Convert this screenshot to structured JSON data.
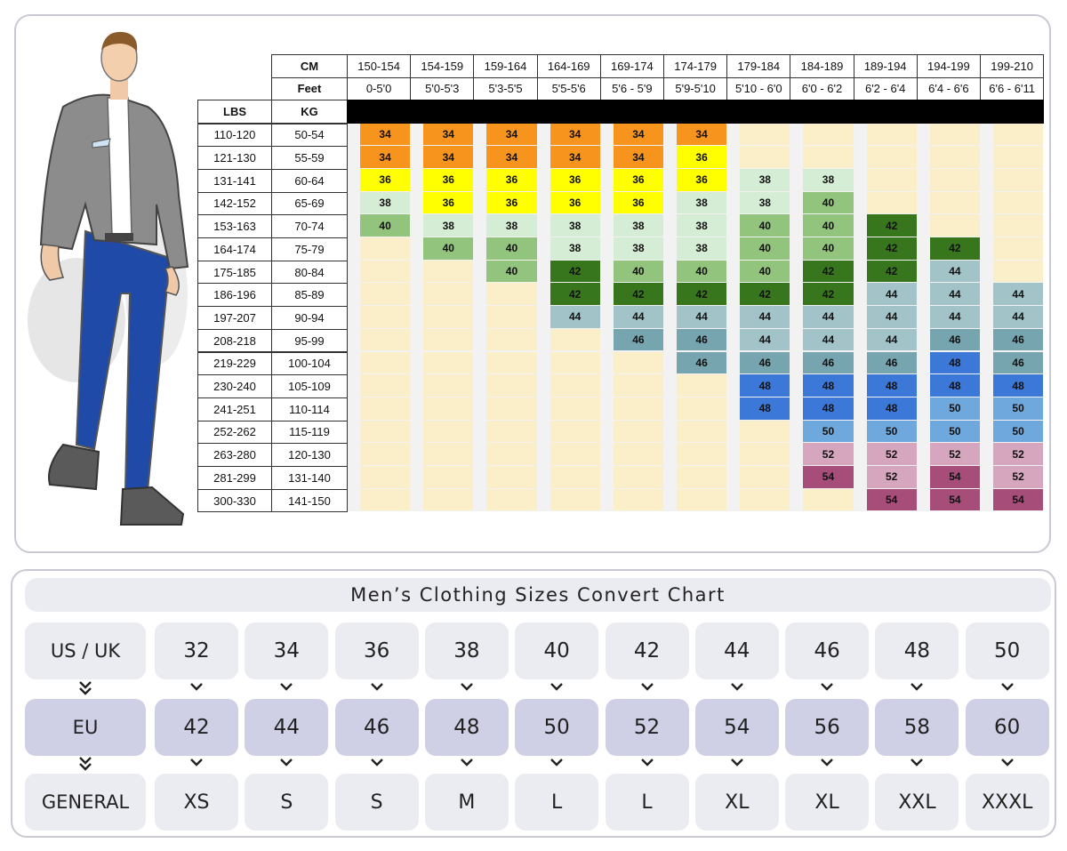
{
  "chart_data": {
    "type": "table",
    "title": "",
    "header_rows": [
      {
        "label": "CM",
        "values": [
          "150-154",
          "154-159",
          "159-164",
          "164-169",
          "169-174",
          "174-179",
          "179-184",
          "184-189",
          "189-194",
          "194-199",
          "199-210"
        ]
      },
      {
        "label": "Feet",
        "values": [
          "0-5'0",
          "5'0-5'3",
          "5'3-5'5",
          "5'5-5'6",
          "5'6 - 5'9",
          "5'9-5'10",
          "5'10 - 6'0",
          "6'0 - 6'2",
          "6'2 - 6'4",
          "6'4 - 6'6",
          "6'6 - 6'11"
        ]
      }
    ],
    "row_headers": [
      "LBS",
      "KG"
    ],
    "rows": [
      {
        "lbs": "110-120",
        "kg": "50-54",
        "sizes": [
          34,
          34,
          34,
          34,
          34,
          34,
          null,
          null,
          null,
          null,
          null
        ]
      },
      {
        "lbs": "121-130",
        "kg": "55-59",
        "sizes": [
          34,
          34,
          34,
          34,
          34,
          36,
          null,
          null,
          null,
          null,
          null
        ]
      },
      {
        "lbs": "131-141",
        "kg": "60-64",
        "sizes": [
          36,
          36,
          36,
          36,
          36,
          36,
          38,
          38,
          null,
          null,
          null
        ]
      },
      {
        "lbs": "142-152",
        "kg": "65-69",
        "sizes": [
          38,
          36,
          36,
          36,
          36,
          38,
          38,
          40,
          null,
          null,
          null
        ]
      },
      {
        "lbs": "153-163",
        "kg": "70-74",
        "sizes": [
          40,
          38,
          38,
          38,
          38,
          38,
          40,
          40,
          42,
          null,
          null
        ]
      },
      {
        "lbs": "164-174",
        "kg": "75-79",
        "sizes": [
          null,
          40,
          40,
          38,
          38,
          38,
          40,
          40,
          42,
          42,
          null
        ]
      },
      {
        "lbs": "175-185",
        "kg": "80-84",
        "sizes": [
          null,
          null,
          40,
          42,
          40,
          40,
          40,
          42,
          42,
          44,
          null
        ]
      },
      {
        "lbs": "186-196",
        "kg": "85-89",
        "sizes": [
          null,
          null,
          null,
          42,
          42,
          42,
          42,
          42,
          44,
          44,
          44
        ]
      },
      {
        "lbs": "197-207",
        "kg": "90-94",
        "sizes": [
          null,
          null,
          null,
          44,
          44,
          44,
          44,
          44,
          44,
          44,
          44
        ]
      },
      {
        "lbs": "208-218",
        "kg": "95-99",
        "sizes": [
          null,
          null,
          null,
          null,
          46,
          46,
          44,
          44,
          44,
          46,
          46
        ]
      },
      {
        "lbs": "219-229",
        "kg": "100-104",
        "sizes": [
          null,
          null,
          null,
          null,
          null,
          46,
          46,
          46,
          46,
          48,
          46
        ]
      },
      {
        "lbs": "230-240",
        "kg": "105-109",
        "sizes": [
          null,
          null,
          null,
          null,
          null,
          null,
          48,
          48,
          48,
          48,
          48
        ]
      },
      {
        "lbs": "241-251",
        "kg": "110-114",
        "sizes": [
          null,
          null,
          null,
          null,
          null,
          null,
          48,
          48,
          48,
          50,
          50
        ]
      },
      {
        "lbs": "252-262",
        "kg": "115-119",
        "sizes": [
          null,
          null,
          null,
          null,
          null,
          null,
          null,
          50,
          50,
          50,
          50
        ]
      },
      {
        "lbs": "263-280",
        "kg": "120-130",
        "sizes": [
          null,
          null,
          null,
          null,
          null,
          null,
          null,
          52,
          52,
          52,
          52
        ]
      },
      {
        "lbs": "281-299",
        "kg": "131-140",
        "sizes": [
          null,
          null,
          null,
          null,
          null,
          null,
          null,
          54,
          52,
          54,
          52
        ]
      },
      {
        "lbs": "300-330",
        "kg": "141-150",
        "sizes": [
          null,
          null,
          null,
          null,
          null,
          null,
          null,
          null,
          54,
          54,
          54
        ]
      }
    ],
    "size_colors": {
      "34": "#f7941d",
      "36": "#ffff00",
      "38": "#d5ecd5",
      "40": "#93c47d",
      "42": "#38761d",
      "44": "#a2c4c9",
      "46": "#76a5af",
      "48": "#3c78d8",
      "50": "#6fa8dc",
      "52": "#d5a6bd",
      "54": "#a64d79"
    },
    "empty_color": "#fbefc9",
    "stripe_color": "#f2f2f2"
  },
  "conversion": {
    "title": "Men’s Clothing Sizes Convert Chart",
    "rows": [
      {
        "label": "US  / UK",
        "values": [
          "32",
          "34",
          "36",
          "38",
          "40",
          "42",
          "44",
          "46",
          "48",
          "50"
        ]
      },
      {
        "label": "EU",
        "values": [
          "42",
          "44",
          "46",
          "48",
          "50",
          "52",
          "54",
          "56",
          "58",
          "60"
        ]
      },
      {
        "label": "GENERAL",
        "values": [
          "XS",
          "S",
          "S",
          "M",
          "L",
          "L",
          "XL",
          "XL",
          "XXL",
          "XXXL"
        ]
      }
    ],
    "label_arrow_icon": "double-chevron-down-icon",
    "value_arrow_icon": "chevron-down-icon"
  },
  "figure": {
    "icon": "man-in-suit-illustration"
  }
}
